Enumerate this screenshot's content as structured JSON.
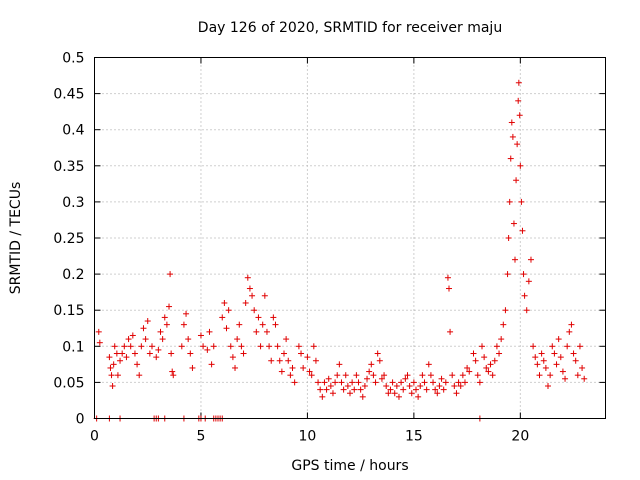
{
  "chart_data": {
    "type": "scatter",
    "title": "Day 126 of 2020, SRMTID for receiver maju",
    "xlabel": "GPS time / hours",
    "ylabel": "SRMTID / TECUs",
    "xlim": [
      0,
      24
    ],
    "ylim": [
      0,
      0.5
    ],
    "xticks": [
      0,
      5,
      10,
      15,
      20
    ],
    "yticks": [
      0,
      0.05,
      0.1,
      0.15,
      0.2,
      0.25,
      0.3,
      0.35,
      0.4,
      0.45,
      0.5
    ],
    "grid": true,
    "marker": "+",
    "color": "#e00000",
    "series": [
      {
        "name": "SRMTID",
        "points": [
          [
            0.2,
            0.12
          ],
          [
            0.25,
            0.105
          ],
          [
            0.7,
            0.085
          ],
          [
            0.75,
            0.07
          ],
          [
            0.8,
            0.06
          ],
          [
            0.85,
            0.045
          ],
          [
            0.9,
            0.075
          ],
          [
            0.95,
            0.1
          ],
          [
            1.05,
            0.09
          ],
          [
            1.1,
            0.06
          ],
          [
            1.2,
            0.08
          ],
          [
            1.3,
            0.09
          ],
          [
            1.4,
            0.1
          ],
          [
            1.5,
            0.085
          ],
          [
            1.6,
            0.11
          ],
          [
            1.7,
            0.1
          ],
          [
            1.8,
            0.115
          ],
          [
            1.9,
            0.09
          ],
          [
            2.0,
            0.075
          ],
          [
            2.1,
            0.06
          ],
          [
            2.2,
            0.1
          ],
          [
            2.3,
            0.125
          ],
          [
            2.4,
            0.11
          ],
          [
            2.5,
            0.135
          ],
          [
            2.6,
            0.09
          ],
          [
            2.7,
            0.1
          ],
          [
            2.9,
            0.085
          ],
          [
            3.0,
            0.095
          ],
          [
            3.1,
            0.12
          ],
          [
            3.2,
            0.11
          ],
          [
            3.3,
            0.14
          ],
          [
            3.4,
            0.13
          ],
          [
            3.5,
            0.155
          ],
          [
            3.55,
            0.2
          ],
          [
            3.6,
            0.09
          ],
          [
            3.65,
            0.065
          ],
          [
            3.7,
            0.06
          ],
          [
            4.1,
            0.1
          ],
          [
            4.2,
            0.13
          ],
          [
            4.3,
            0.145
          ],
          [
            4.4,
            0.11
          ],
          [
            4.5,
            0.09
          ],
          [
            4.6,
            0.07
          ],
          [
            5.0,
            0.115
          ],
          [
            5.1,
            0.1
          ],
          [
            5.3,
            0.095
          ],
          [
            5.4,
            0.12
          ],
          [
            5.5,
            0.075
          ],
          [
            5.6,
            0.1
          ],
          [
            6.0,
            0.14
          ],
          [
            6.1,
            0.16
          ],
          [
            6.2,
            0.125
          ],
          [
            6.3,
            0.15
          ],
          [
            6.4,
            0.1
          ],
          [
            6.5,
            0.085
          ],
          [
            6.6,
            0.07
          ],
          [
            6.7,
            0.11
          ],
          [
            6.8,
            0.13
          ],
          [
            6.9,
            0.1
          ],
          [
            7.0,
            0.09
          ],
          [
            7.1,
            0.16
          ],
          [
            7.2,
            0.195
          ],
          [
            7.3,
            0.18
          ],
          [
            7.4,
            0.17
          ],
          [
            7.5,
            0.15
          ],
          [
            7.6,
            0.12
          ],
          [
            7.7,
            0.14
          ],
          [
            7.8,
            0.1
          ],
          [
            7.9,
            0.13
          ],
          [
            8.0,
            0.17
          ],
          [
            8.1,
            0.12
          ],
          [
            8.2,
            0.1
          ],
          [
            8.3,
            0.08
          ],
          [
            8.4,
            0.14
          ],
          [
            8.5,
            0.13
          ],
          [
            8.6,
            0.1
          ],
          [
            8.7,
            0.08
          ],
          [
            8.8,
            0.065
          ],
          [
            8.9,
            0.09
          ],
          [
            9.0,
            0.11
          ],
          [
            9.1,
            0.08
          ],
          [
            9.2,
            0.06
          ],
          [
            9.3,
            0.07
          ],
          [
            9.4,
            0.05
          ],
          [
            9.6,
            0.1
          ],
          [
            9.7,
            0.09
          ],
          [
            9.8,
            0.07
          ],
          [
            10.0,
            0.085
          ],
          [
            10.1,
            0.065
          ],
          [
            10.2,
            0.06
          ],
          [
            10.3,
            0.1
          ],
          [
            10.4,
            0.08
          ],
          [
            10.5,
            0.05
          ],
          [
            10.6,
            0.04
          ],
          [
            10.7,
            0.03
          ],
          [
            10.8,
            0.05
          ],
          [
            10.9,
            0.04
          ],
          [
            11.0,
            0.055
          ],
          [
            11.1,
            0.045
          ],
          [
            11.2,
            0.035
          ],
          [
            11.3,
            0.05
          ],
          [
            11.4,
            0.06
          ],
          [
            11.5,
            0.075
          ],
          [
            11.6,
            0.05
          ],
          [
            11.7,
            0.04
          ],
          [
            11.8,
            0.06
          ],
          [
            11.9,
            0.045
          ],
          [
            12.0,
            0.035
          ],
          [
            12.1,
            0.05
          ],
          [
            12.2,
            0.04
          ],
          [
            12.3,
            0.06
          ],
          [
            12.4,
            0.05
          ],
          [
            12.5,
            0.04
          ],
          [
            12.6,
            0.03
          ],
          [
            12.7,
            0.045
          ],
          [
            12.8,
            0.055
          ],
          [
            12.9,
            0.065
          ],
          [
            13.0,
            0.075
          ],
          [
            13.1,
            0.06
          ],
          [
            13.2,
            0.05
          ],
          [
            13.3,
            0.09
          ],
          [
            13.4,
            0.08
          ],
          [
            13.5,
            0.055
          ],
          [
            13.6,
            0.06
          ],
          [
            13.7,
            0.045
          ],
          [
            13.8,
            0.035
          ],
          [
            13.9,
            0.04
          ],
          [
            14.0,
            0.05
          ],
          [
            14.1,
            0.035
          ],
          [
            14.2,
            0.045
          ],
          [
            14.3,
            0.03
          ],
          [
            14.4,
            0.05
          ],
          [
            14.5,
            0.04
          ],
          [
            14.6,
            0.055
          ],
          [
            14.7,
            0.06
          ],
          [
            14.8,
            0.045
          ],
          [
            14.9,
            0.035
          ],
          [
            15.0,
            0.05
          ],
          [
            15.1,
            0.04
          ],
          [
            15.2,
            0.03
          ],
          [
            15.3,
            0.045
          ],
          [
            15.4,
            0.06
          ],
          [
            15.5,
            0.05
          ],
          [
            15.6,
            0.04
          ],
          [
            15.7,
            0.075
          ],
          [
            15.8,
            0.06
          ],
          [
            15.9,
            0.05
          ],
          [
            16.0,
            0.04
          ],
          [
            16.1,
            0.035
          ],
          [
            16.2,
            0.045
          ],
          [
            16.3,
            0.055
          ],
          [
            16.4,
            0.04
          ],
          [
            16.5,
            0.05
          ],
          [
            16.6,
            0.195
          ],
          [
            16.65,
            0.18
          ],
          [
            16.7,
            0.12
          ],
          [
            16.8,
            0.06
          ],
          [
            16.9,
            0.045
          ],
          [
            17.0,
            0.035
          ],
          [
            17.1,
            0.05
          ],
          [
            17.2,
            0.045
          ],
          [
            17.3,
            0.06
          ],
          [
            17.4,
            0.05
          ],
          [
            17.5,
            0.07
          ],
          [
            17.6,
            0.065
          ],
          [
            17.8,
            0.09
          ],
          [
            17.9,
            0.08
          ],
          [
            18.0,
            0.06
          ],
          [
            18.1,
            0.05
          ],
          [
            18.2,
            0.1
          ],
          [
            18.3,
            0.085
          ],
          [
            18.4,
            0.07
          ],
          [
            18.5,
            0.065
          ],
          [
            18.6,
            0.075
          ],
          [
            18.7,
            0.06
          ],
          [
            18.8,
            0.08
          ],
          [
            18.9,
            0.1
          ],
          [
            19.0,
            0.09
          ],
          [
            19.1,
            0.11
          ],
          [
            19.2,
            0.13
          ],
          [
            19.3,
            0.15
          ],
          [
            19.4,
            0.2
          ],
          [
            19.45,
            0.25
          ],
          [
            19.5,
            0.3
          ],
          [
            19.55,
            0.36
          ],
          [
            19.6,
            0.41
          ],
          [
            19.65,
            0.39
          ],
          [
            19.7,
            0.27
          ],
          [
            19.75,
            0.22
          ],
          [
            19.8,
            0.33
          ],
          [
            19.85,
            0.38
          ],
          [
            19.9,
            0.44
          ],
          [
            19.93,
            0.465
          ],
          [
            19.97,
            0.42
          ],
          [
            20.0,
            0.35
          ],
          [
            20.05,
            0.3
          ],
          [
            20.1,
            0.26
          ],
          [
            20.15,
            0.2
          ],
          [
            20.2,
            0.17
          ],
          [
            20.3,
            0.15
          ],
          [
            20.4,
            0.19
          ],
          [
            20.5,
            0.22
          ],
          [
            20.6,
            0.1
          ],
          [
            20.7,
            0.085
          ],
          [
            20.8,
            0.075
          ],
          [
            20.9,
            0.06
          ],
          [
            21.0,
            0.09
          ],
          [
            21.1,
            0.08
          ],
          [
            21.2,
            0.07
          ],
          [
            21.3,
            0.045
          ],
          [
            21.4,
            0.06
          ],
          [
            21.5,
            0.1
          ],
          [
            21.6,
            0.09
          ],
          [
            21.7,
            0.075
          ],
          [
            21.8,
            0.11
          ],
          [
            21.9,
            0.085
          ],
          [
            22.0,
            0.065
          ],
          [
            22.1,
            0.055
          ],
          [
            22.2,
            0.1
          ],
          [
            22.3,
            0.12
          ],
          [
            22.4,
            0.13
          ],
          [
            22.5,
            0.09
          ],
          [
            22.6,
            0.08
          ],
          [
            22.7,
            0.06
          ],
          [
            22.8,
            0.1
          ],
          [
            22.9,
            0.07
          ],
          [
            23.0,
            0.055
          ]
        ]
      }
    ],
    "zero_points_x": [
      0.1,
      0.7,
      1.2,
      2.8,
      2.9,
      3.0,
      3.3,
      4.2,
      4.9,
      5.0,
      5.2,
      5.6,
      5.7,
      5.8,
      5.9,
      6.0,
      18.1
    ]
  }
}
